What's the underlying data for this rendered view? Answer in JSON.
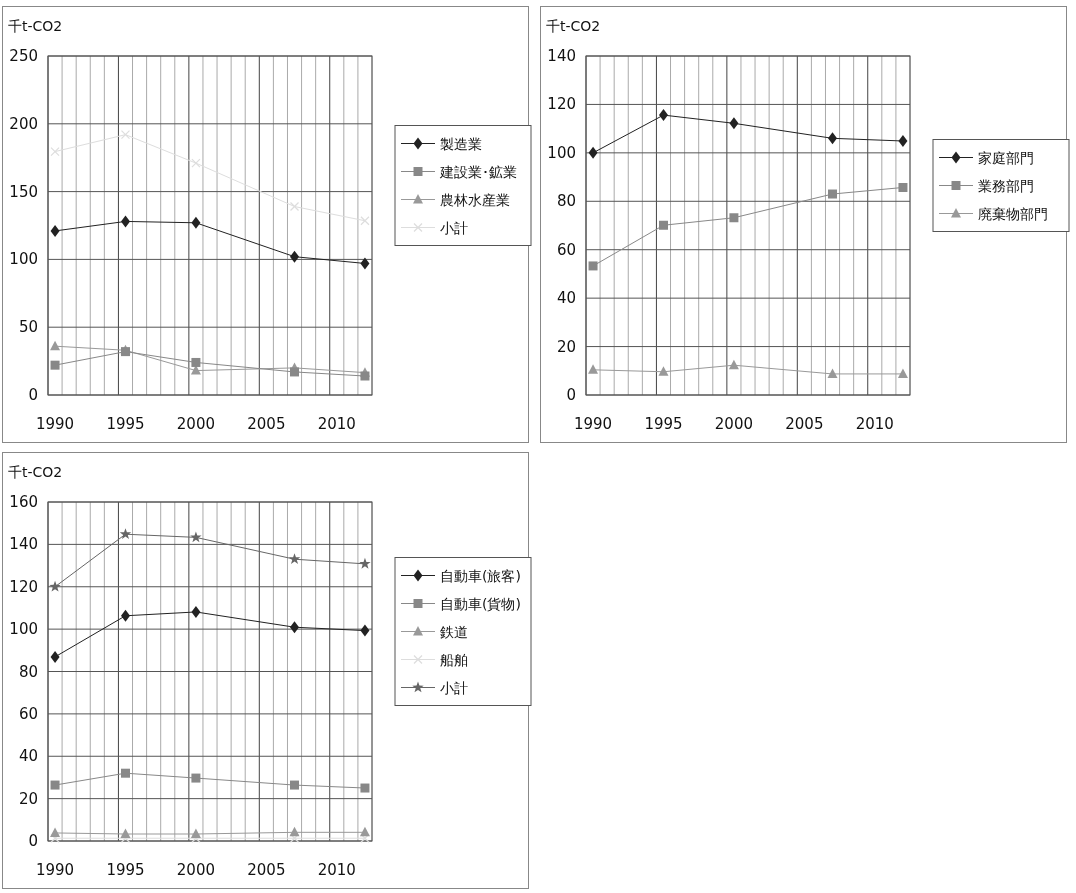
{
  "chart_data": [
    {
      "type": "line",
      "ylabel": "千t-CO2",
      "x": [
        1990,
        1995,
        2000,
        2007,
        2012
      ],
      "xlim": [
        1989.5,
        2012.5
      ],
      "xticks": [
        1990,
        1995,
        2000,
        2005,
        2010
      ],
      "ylim": [
        0,
        250
      ],
      "yticks": [
        0,
        50,
        100,
        150,
        200,
        250
      ],
      "grid": true,
      "legend": "right",
      "series": [
        {
          "name": "製造業",
          "color": "#222222",
          "marker": "diamond",
          "values": [
            121,
            128,
            127,
            102,
            97
          ]
        },
        {
          "name": "建設業･鉱業",
          "color": "#888888",
          "marker": "square",
          "values": [
            22,
            32,
            24,
            17,
            14
          ]
        },
        {
          "name": "農林水産業",
          "color": "#999999",
          "marker": "triangle",
          "values": [
            36,
            33,
            18,
            20,
            16.5
          ]
        },
        {
          "name": "小計",
          "color": "#dddddd",
          "marker": "cross",
          "values": [
            179.5,
            192,
            171,
            139,
            128.5
          ]
        }
      ]
    },
    {
      "type": "line",
      "ylabel": "千t-CO2",
      "x": [
        1990,
        1995,
        2000,
        2007,
        2012
      ],
      "xlim": [
        1989.5,
        2012.5
      ],
      "xticks": [
        1990,
        1995,
        2000,
        2005,
        2010
      ],
      "ylim": [
        0,
        140
      ],
      "yticks": [
        0,
        20,
        40,
        60,
        80,
        100,
        120,
        140
      ],
      "grid": true,
      "legend": "right",
      "series": [
        {
          "name": "家庭部門",
          "color": "#222222",
          "marker": "diamond",
          "values": [
            100,
            115.6,
            112.2,
            106,
            104.9
          ]
        },
        {
          "name": "業務部門",
          "color": "#888888",
          "marker": "square",
          "values": [
            53.3,
            70.1,
            73.2,
            83,
            85.7
          ]
        },
        {
          "name": "廃棄物部門",
          "color": "#999999",
          "marker": "triangle",
          "values": [
            10.4,
            9.6,
            12.3,
            8.7,
            8.7
          ]
        }
      ]
    },
    {
      "type": "line",
      "ylabel": "千t-CO2",
      "x": [
        1990,
        1995,
        2000,
        2007,
        2012
      ],
      "xlim": [
        1989.5,
        2012.5
      ],
      "xticks": [
        1990,
        1995,
        2000,
        2005,
        2010
      ],
      "ylim": [
        0,
        160
      ],
      "yticks": [
        0,
        20,
        40,
        60,
        80,
        100,
        120,
        140,
        160
      ],
      "grid": true,
      "legend": "right",
      "series": [
        {
          "name": "自動車(旅客)",
          "color": "#222222",
          "marker": "diamond",
          "values": [
            86.9,
            106.3,
            108.1,
            100.9,
            99.3
          ]
        },
        {
          "name": "自動車(貨物)",
          "color": "#888888",
          "marker": "square",
          "values": [
            26.4,
            32,
            29.7,
            26.4,
            25
          ]
        },
        {
          "name": "鉄道",
          "color": "#999999",
          "marker": "triangle",
          "values": [
            3.8,
            3.3,
            3.3,
            4.1,
            4.1
          ]
        },
        {
          "name": "船舶",
          "color": "#dddddd",
          "marker": "cross",
          "values": [
            1.3,
            1.3,
            1.3,
            1.3,
            1.3
          ]
        },
        {
          "name": "小計",
          "color": "#666666",
          "marker": "star",
          "values": [
            120,
            144.8,
            143.3,
            133,
            130.8
          ]
        }
      ]
    }
  ]
}
